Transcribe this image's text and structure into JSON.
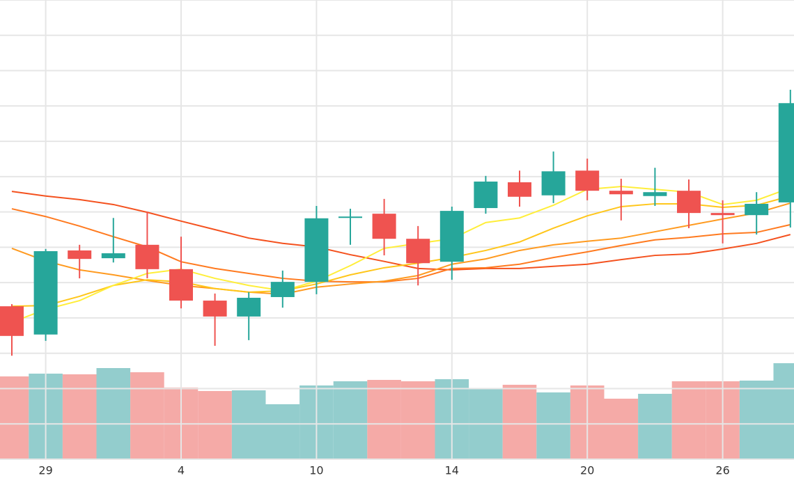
{
  "chart_data": {
    "type": "candlestick",
    "categories": [
      null,
      "29",
      null,
      null,
      null,
      "4",
      null,
      null,
      null,
      "10",
      null,
      null,
      null,
      "14",
      null,
      null,
      null,
      "20",
      null,
      null,
      null,
      "26",
      null,
      null
    ],
    "open": [
      43.3,
      35.3,
      59.1,
      56.9,
      60.7,
      53.8,
      44.9,
      40.4,
      45.9,
      50.2,
      68.3,
      69.5,
      62.4,
      55.9,
      71.1,
      78.4,
      74.7,
      81.7,
      76.0,
      74.5,
      76.0,
      69.7,
      69.1,
      72.7
    ],
    "high": [
      43.9,
      59.5,
      60.7,
      68.3,
      70.1,
      63.0,
      46.9,
      47.3,
      53.4,
      71.7,
      70.9,
      73.7,
      66.0,
      71.5,
      80.2,
      81.7,
      87.1,
      85.1,
      79.4,
      82.5,
      79.2,
      73.3,
      75.6,
      104.6
    ],
    "low": [
      29.3,
      33.5,
      51.2,
      55.7,
      51.2,
      42.7,
      32.1,
      33.7,
      42.9,
      46.7,
      60.7,
      57.7,
      49.2,
      50.8,
      69.5,
      71.5,
      72.5,
      73.3,
      67.6,
      71.7,
      65.4,
      61.1,
      63.6,
      65.6
    ],
    "close": [
      34.9,
      58.9,
      56.7,
      58.3,
      53.8,
      44.9,
      40.4,
      45.7,
      50.2,
      68.2,
      68.7,
      62.4,
      55.5,
      70.3,
      78.6,
      74.3,
      81.5,
      76.0,
      75.0,
      75.6,
      69.7,
      69.1,
      72.3,
      100.8
    ],
    "up_color": "#26a69a",
    "down_color": "#ef5350",
    "series": [
      {
        "color": "#f4511e",
        "values": [
          75.8,
          74.5,
          73.5,
          72.1,
          69.9,
          67.4,
          65.0,
          62.6,
          61.1,
          60.1,
          57.9,
          56.0,
          54.0,
          53.6,
          54.0,
          54.0,
          54.6,
          55.2,
          56.5,
          57.7,
          58.1,
          59.5,
          61.1,
          63.6
        ]
      },
      {
        "color": "#ff7a1f",
        "values": [
          70.9,
          68.7,
          66.0,
          63.0,
          60.1,
          55.9,
          54.0,
          52.6,
          51.2,
          50.4,
          50.2,
          50.2,
          51.2,
          54.0,
          54.2,
          55.2,
          57.1,
          58.7,
          60.5,
          62.1,
          62.8,
          63.8,
          64.2,
          66.4
        ]
      },
      {
        "color": "#ff9a1f",
        "values": [
          59.7,
          56.1,
          53.6,
          52.2,
          50.6,
          49.2,
          48.3,
          47.3,
          46.7,
          48.7,
          49.6,
          50.4,
          52.0,
          55.2,
          56.7,
          59.1,
          60.7,
          61.7,
          62.6,
          64.4,
          66.2,
          68.0,
          69.7,
          72.5
        ]
      },
      {
        "color": "#ffc61a",
        "values": [
          43.3,
          43.5,
          46.1,
          49.2,
          50.8,
          50.2,
          48.3,
          47.3,
          47.7,
          49.6,
          52.2,
          54.2,
          55.5,
          57.1,
          59.1,
          61.5,
          65.4,
          68.9,
          71.5,
          72.3,
          72.3,
          71.3,
          71.9,
          74.5
        ]
      },
      {
        "color": "#ffee3a",
        "values": [
          38.8,
          42.4,
          44.9,
          49.2,
          52.6,
          53.8,
          51.2,
          49.2,
          47.7,
          50.4,
          54.8,
          59.7,
          61.1,
          62.4,
          67.0,
          68.3,
          71.9,
          76.4,
          77.2,
          76.4,
          75.6,
          72.1,
          73.3,
          76.8
        ]
      }
    ],
    "volume": [
      59.5,
      61.5,
      61,
      65.5,
      62.5,
      51.5,
      49,
      49.5,
      39.5,
      53,
      56,
      57,
      56,
      57.5,
      51,
      53.5,
      48,
      53,
      43.5,
      47,
      56,
      56,
      56.5,
      69
    ],
    "volume_up_color": "#93cdcd",
    "volume_down_color": "#f5aaa7",
    "volume_ylim": [
      0,
      330
    ],
    "ylim": [
      0,
      130
    ],
    "yticks": [
      0,
      10,
      20,
      30,
      40,
      50,
      60,
      70,
      80,
      90,
      100,
      110,
      120,
      130
    ],
    "grid": true
  }
}
